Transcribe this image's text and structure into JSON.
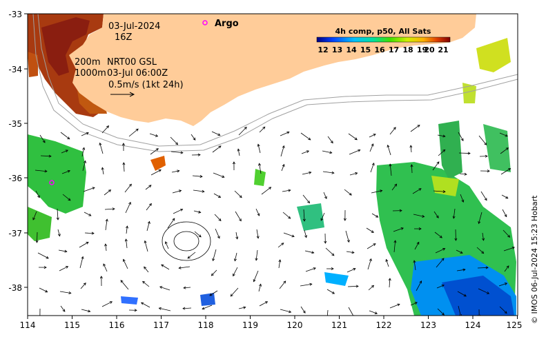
{
  "map": {
    "date": "03-Jul-2024",
    "hour": "16Z",
    "depth_shallow": "200m",
    "depth_deep": "1000m",
    "current_source": "NRT00 GSL",
    "current_time": "03-Jul 06:00Z",
    "scale_label": "0.5m/s (1kt 24h)",
    "argo_label": "Argo",
    "colorbar_title": "4h comp, p50, All Sats",
    "colorbar_ticks": [
      "12",
      "13",
      "14",
      "15",
      "16",
      "17",
      "18",
      "19",
      "20",
      "21"
    ],
    "credit": "© IMOS 06-Jul-2024 15:23 Hobart",
    "x_ticks": [
      "114",
      "115",
      "116",
      "117",
      "118",
      "119",
      "120",
      "121",
      "122",
      "123",
      "124",
      "125"
    ],
    "y_ticks": [
      "-33",
      "-34",
      "-35",
      "-36",
      "-37",
      "-38"
    ],
    "colors": {
      "land": "#ffcc99",
      "argo": "#ff00ff"
    }
  }
}
